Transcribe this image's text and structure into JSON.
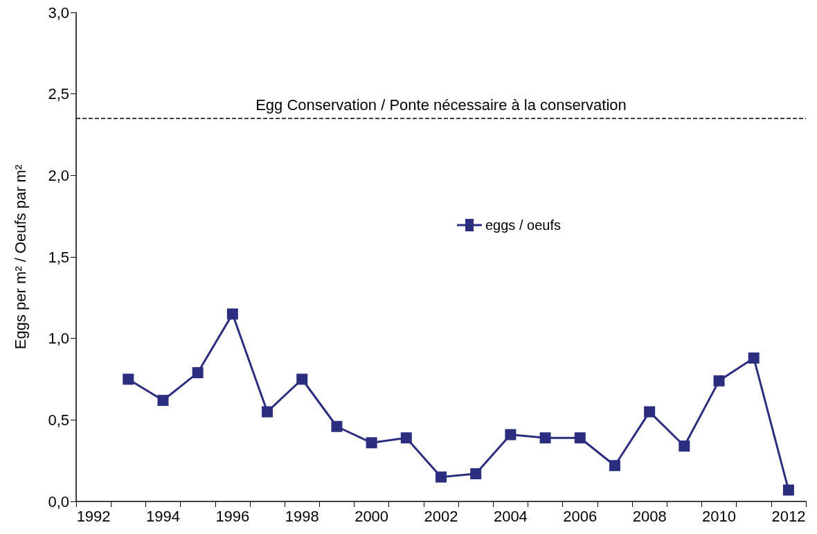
{
  "chart_data": {
    "type": "line",
    "ylabel": "Eggs per m² / Oeufs par m²",
    "categories": [
      "1992",
      null,
      "1994",
      null,
      "1996",
      null,
      "1998",
      null,
      "2000",
      null,
      "2002",
      null,
      "2004",
      null,
      "2006",
      null,
      "2008",
      null,
      "2010",
      null,
      "2012"
    ],
    "series": [
      {
        "name": "eggs / oeufs",
        "color": "#2b2e7f",
        "values": [
          null,
          0.75,
          0.62,
          0.79,
          1.15,
          0.55,
          0.75,
          0.46,
          0.36,
          0.39,
          0.15,
          0.17,
          0.41,
          0.39,
          0.39,
          0.22,
          0.55,
          0.34,
          0.74,
          0.88,
          0.07
        ]
      }
    ],
    "ylim": [
      0,
      3
    ],
    "yticks": [
      {
        "value": 0,
        "label": "0,0"
      },
      {
        "value": 0.5,
        "label": "0,5"
      },
      {
        "value": 1,
        "label": "1,0"
      },
      {
        "value": 1.5,
        "label": "1,5"
      },
      {
        "value": 2,
        "label": "2,0"
      },
      {
        "value": 2.5,
        "label": "2,5"
      },
      {
        "value": 3,
        "label": "3,0"
      }
    ],
    "ref_lines": [
      {
        "axis": "y",
        "value": 2.35,
        "label": "Egg Conservation / Ponte nécessaire à la conservation",
        "color": "#000000",
        "line_style": "dashed"
      }
    ],
    "grid": false,
    "legend": "top",
    "marker": "square",
    "line_style": "solid"
  }
}
